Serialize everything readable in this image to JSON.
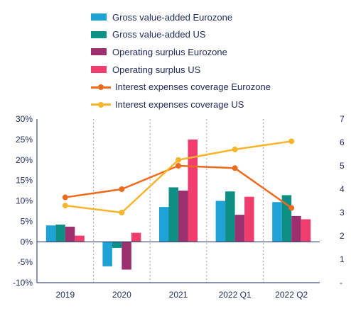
{
  "chart_data": {
    "type": "bar",
    "categories": [
      "2019",
      "2020",
      "2021",
      "2022 Q1",
      "2022 Q2"
    ],
    "series": [
      {
        "name": "Gross value-added Eurozone",
        "kind": "bar",
        "axis": "left",
        "color": "#1fa3d6",
        "values": [
          4.0,
          -6.0,
          8.5,
          10.0,
          9.7
        ]
      },
      {
        "name": "Gross value-added US",
        "kind": "bar",
        "axis": "left",
        "color": "#0e8f86",
        "values": [
          4.2,
          -1.5,
          13.3,
          12.3,
          11.4
        ]
      },
      {
        "name": "Operating surplus Eurozone",
        "kind": "bar",
        "axis": "left",
        "color": "#9c2f6e",
        "values": [
          3.7,
          -6.8,
          12.5,
          6.6,
          6.3
        ]
      },
      {
        "name": "Operating surplus US",
        "kind": "bar",
        "axis": "left",
        "color": "#f03d6e",
        "values": [
          1.5,
          2.2,
          25.0,
          11.0,
          5.5
        ]
      },
      {
        "name": "Interest expenses coverage Eurozone",
        "kind": "line",
        "axis": "right",
        "color": "#ee6b1e",
        "values": [
          3.65,
          4.0,
          5.0,
          4.9,
          3.2
        ]
      },
      {
        "name": "Interest expenses coverage US",
        "kind": "line",
        "axis": "right",
        "color": "#f7b52c",
        "values": [
          3.3,
          3.0,
          5.25,
          5.7,
          6.05
        ]
      }
    ],
    "y_left": {
      "min": -10,
      "max": 30,
      "ticks": [
        -10,
        -5,
        0,
        5,
        10,
        15,
        20,
        25,
        30
      ],
      "tick_labels": [
        "-10%",
        "-5%",
        "0%",
        "5%",
        "10%",
        "15%",
        "20%",
        "25%",
        "30%"
      ]
    },
    "y_right": {
      "min": 0,
      "max": 7,
      "ticks": [
        0,
        1,
        2,
        3,
        4,
        5,
        6,
        7
      ],
      "tick_labels": [
        "-",
        "1",
        "2",
        "3",
        "4",
        "5",
        "6",
        "7"
      ]
    },
    "grid": false,
    "legend_position": "top",
    "colors": {
      "text": "#1f2a5c",
      "axis": "#1f2a5c",
      "divider": "#9aa0b4"
    }
  }
}
